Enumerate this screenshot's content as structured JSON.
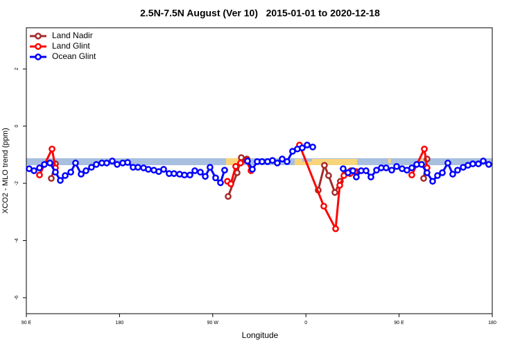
{
  "chart_data": {
    "type": "line",
    "title": "2.5N-7.5N August (Ver 10)   2015-01-01 to 2020-12-18",
    "x_label": "Longitude",
    "y_label": "XCO2 - MLO trend (ppm)",
    "xlim": [
      90,
      540
    ],
    "ylim": [
      -6.56,
      3.44
    ],
    "xticks": [
      {
        "value": 90,
        "label": "90 E"
      },
      180,
      {
        "value": 270,
        "label": "90 W"
      },
      {
        "value": 360,
        "label": "0"
      },
      {
        "value": 450,
        "label": "90 E"
      },
      {
        "value": 540,
        "label": "180"
      }
    ],
    "yticks": [
      -6,
      -4,
      -2,
      0,
      2
    ],
    "legend": "top-left",
    "series": [
      {
        "name": "Land Nadir",
        "color": "#a52a2a",
        "x": [
          114.1,
          118.1,
          null,
          284.9,
          293.6,
          297.6,
          303.0,
          null,
          371.9,
          377.9,
          381.9,
          388.0,
          393.3,
          398.0,
          403.4,
          408.7,
          null,
          473.7,
          477.0
        ],
        "values": [
          -1.83,
          -1.32,
          null,
          -2.46,
          -1.63,
          -1.1,
          -1.15,
          null,
          -2.24,
          -1.37,
          -1.73,
          -2.32,
          -1.93,
          -1.66,
          -1.56,
          -1.59,
          null,
          -1.83,
          -1.15
        ]
      },
      {
        "name": "Land Glint",
        "color": "#ff0000",
        "x": [
          102.7,
          114.8,
          118.1,
          null,
          284.2,
          287.5,
          292.2,
          296.9,
          302.3,
          307.0,
          null,
          353.8,
          377.3,
          388.7,
          392.7,
          396.7,
          402.7,
          407.4,
          null,
          462.3,
          474.4,
          477.0
        ],
        "values": [
          -1.71,
          -0.8,
          -1.46,
          null,
          -1.93,
          -2.02,
          -1.41,
          -1.29,
          -1.2,
          -1.56,
          null,
          -0.66,
          -2.8,
          -3.59,
          -2.07,
          -1.73,
          -1.66,
          -1.59,
          null,
          -1.71,
          -0.8,
          -1.46
        ]
      },
      {
        "name": "Ocean Glint",
        "color": "#0000ff",
        "x": [
          92.7,
          97.4,
          102.7,
          107.4,
          112.8,
          118.1,
          122.8,
          127.5,
          132.9,
          137.5,
          142.9,
          147.6,
          152.9,
          157.6,
          163.0,
          167.6,
          173.0,
          177.7,
          183.1,
          187.8,
          193.1,
          197.8,
          203.2,
          207.8,
          213.2,
          217.9,
          222.6,
          227.9,
          232.6,
          238.0,
          242.7,
          248.0,
          252.7,
          258.1,
          262.8,
          267.4,
          272.8,
          277.5,
          281.5,
          null,
          303.6,
          308.3,
          313.0,
          317.7,
          323.0,
          327.7,
          332.4,
          337.1,
          341.8,
          347.1,
          351.8,
          356.5,
          361.2,
          366.6,
          null,
          396.0,
          400.7,
          405.4,
          408.7,
          413.4,
          418.1,
          422.8,
          428.2,
          432.8,
          437.5,
          442.9,
          447.6,
          452.9,
          457.6,
          462.3,
          467.0,
          471.7,
          477.0,
          482.4,
          487.1,
          491.8,
          497.1,
          501.8,
          506.5,
          511.9,
          516.5,
          521.2,
          526.6,
          531.3,
          536.6
        ],
        "values": [
          -1.49,
          -1.56,
          -1.46,
          -1.34,
          -1.29,
          -1.61,
          -1.9,
          -1.73,
          -1.61,
          -1.29,
          -1.68,
          -1.56,
          -1.44,
          -1.34,
          -1.29,
          -1.29,
          -1.22,
          -1.34,
          -1.29,
          -1.27,
          -1.44,
          -1.44,
          -1.46,
          -1.51,
          -1.54,
          -1.59,
          -1.51,
          -1.66,
          -1.66,
          -1.68,
          -1.71,
          -1.71,
          -1.56,
          -1.61,
          -1.76,
          -1.44,
          -1.81,
          -1.98,
          -1.54,
          null,
          -1.22,
          -1.51,
          -1.24,
          -1.24,
          -1.24,
          -1.2,
          -1.29,
          -1.15,
          -1.24,
          -0.88,
          -0.8,
          -0.76,
          -0.66,
          -0.73,
          null,
          -1.49,
          -1.63,
          -1.56,
          -1.78,
          -1.56,
          -1.56,
          -1.78,
          -1.54,
          -1.46,
          -1.46,
          -1.54,
          -1.41,
          -1.49,
          -1.54,
          -1.46,
          -1.34,
          -1.34,
          -1.63,
          -1.93,
          -1.73,
          -1.63,
          -1.29,
          -1.68,
          -1.54,
          -1.44,
          -1.37,
          -1.32,
          -1.32,
          -1.22,
          -1.34
        ]
      }
    ]
  }
}
